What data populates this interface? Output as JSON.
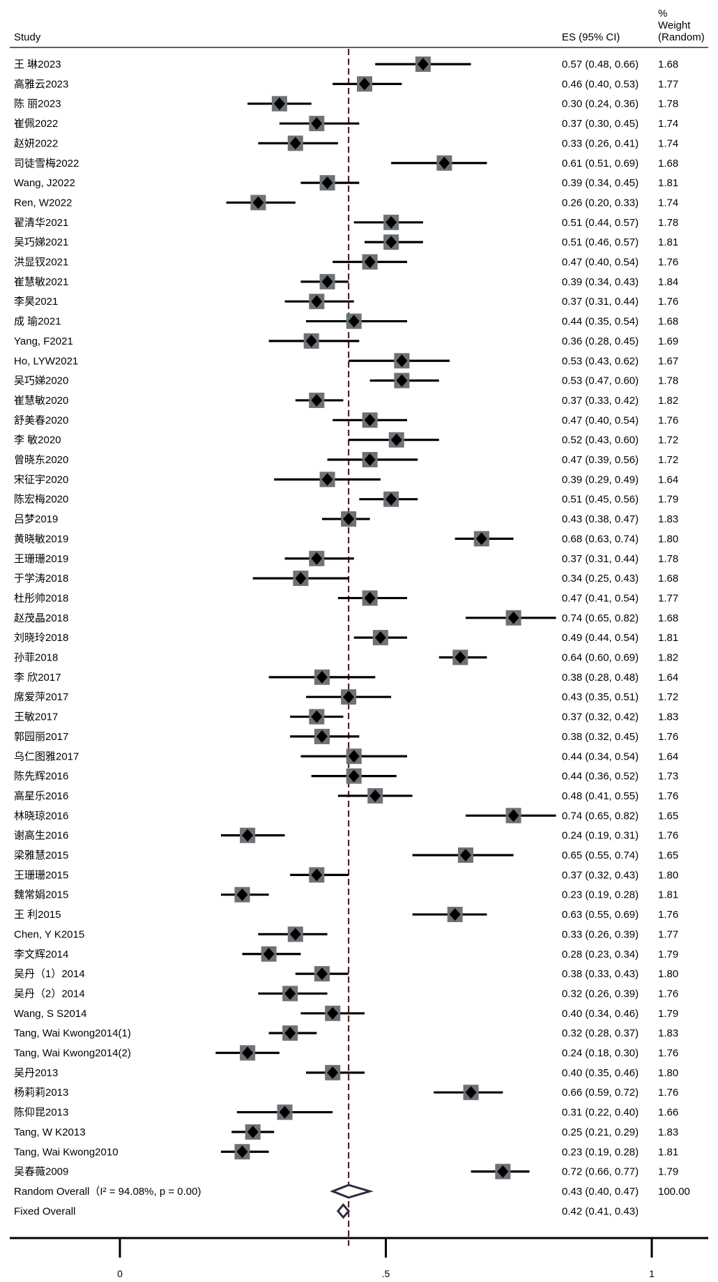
{
  "chart_data": {
    "type": "forest",
    "headers": {
      "study": "Study",
      "es": "ES (95% CI)",
      "weight_lines": [
        "%",
        "Weight",
        "(Random)"
      ]
    },
    "xlim": [
      0,
      1
    ],
    "x_ticks": [
      {
        "value": 0,
        "label": "0"
      },
      {
        "value": 0.5,
        "label": ".5"
      },
      {
        "value": 1,
        "label": "1"
      }
    ],
    "reference_line": 0.43,
    "studies": [
      {
        "label": "王 琳2023",
        "es": 0.57,
        "lo": 0.48,
        "hi": 0.66,
        "ci_text": "0.57 (0.48, 0.66)",
        "weight": "1.68"
      },
      {
        "label": "高雅云2023",
        "es": 0.46,
        "lo": 0.4,
        "hi": 0.53,
        "ci_text": "0.46 (0.40, 0.53)",
        "weight": "1.77"
      },
      {
        "label": "陈 丽2023",
        "es": 0.3,
        "lo": 0.24,
        "hi": 0.36,
        "ci_text": "0.30 (0.24, 0.36)",
        "weight": "1.78"
      },
      {
        "label": "崔佩2022",
        "es": 0.37,
        "lo": 0.3,
        "hi": 0.45,
        "ci_text": "0.37 (0.30, 0.45)",
        "weight": "1.74"
      },
      {
        "label": "赵妍2022",
        "es": 0.33,
        "lo": 0.26,
        "hi": 0.41,
        "ci_text": "0.33 (0.26, 0.41)",
        "weight": "1.74"
      },
      {
        "label": "司徒雪梅2022",
        "es": 0.61,
        "lo": 0.51,
        "hi": 0.69,
        "ci_text": "0.61 (0.51, 0.69)",
        "weight": "1.68"
      },
      {
        "label": "Wang, J2022",
        "es": 0.39,
        "lo": 0.34,
        "hi": 0.45,
        "ci_text": "0.39 (0.34, 0.45)",
        "weight": "1.81"
      },
      {
        "label": "Ren, W2022",
        "es": 0.26,
        "lo": 0.2,
        "hi": 0.33,
        "ci_text": "0.26 (0.20, 0.33)",
        "weight": "1.74"
      },
      {
        "label": "翟清华2021",
        "es": 0.51,
        "lo": 0.44,
        "hi": 0.57,
        "ci_text": "0.51 (0.44, 0.57)",
        "weight": "1.78"
      },
      {
        "label": "吴巧娣2021",
        "es": 0.51,
        "lo": 0.46,
        "hi": 0.57,
        "ci_text": "0.51 (0.46, 0.57)",
        "weight": "1.81"
      },
      {
        "label": "洪显钗2021",
        "es": 0.47,
        "lo": 0.4,
        "hi": 0.54,
        "ci_text": "0.47 (0.40, 0.54)",
        "weight": "1.76"
      },
      {
        "label": "崔慧敏2021",
        "es": 0.39,
        "lo": 0.34,
        "hi": 0.43,
        "ci_text": "0.39 (0.34, 0.43)",
        "weight": "1.84"
      },
      {
        "label": "李昊2021",
        "es": 0.37,
        "lo": 0.31,
        "hi": 0.44,
        "ci_text": "0.37 (0.31, 0.44)",
        "weight": "1.76"
      },
      {
        "label": "成 瑜2021",
        "es": 0.44,
        "lo": 0.35,
        "hi": 0.54,
        "ci_text": "0.44 (0.35, 0.54)",
        "weight": "1.68"
      },
      {
        "label": "Yang, F2021",
        "es": 0.36,
        "lo": 0.28,
        "hi": 0.45,
        "ci_text": "0.36 (0.28, 0.45)",
        "weight": "1.69"
      },
      {
        "label": "Ho, LYW2021",
        "es": 0.53,
        "lo": 0.43,
        "hi": 0.62,
        "ci_text": "0.53 (0.43, 0.62)",
        "weight": "1.67"
      },
      {
        "label": "吴巧娣2020",
        "es": 0.53,
        "lo": 0.47,
        "hi": 0.6,
        "ci_text": "0.53 (0.47, 0.60)",
        "weight": "1.78"
      },
      {
        "label": "崔慧敏2020",
        "es": 0.37,
        "lo": 0.33,
        "hi": 0.42,
        "ci_text": "0.37 (0.33, 0.42)",
        "weight": "1.82"
      },
      {
        "label": "舒美春2020",
        "es": 0.47,
        "lo": 0.4,
        "hi": 0.54,
        "ci_text": "0.47 (0.40, 0.54)",
        "weight": "1.76"
      },
      {
        "label": "李 敏2020",
        "es": 0.52,
        "lo": 0.43,
        "hi": 0.6,
        "ci_text": "0.52 (0.43, 0.60)",
        "weight": "1.72"
      },
      {
        "label": "曾晓东2020",
        "es": 0.47,
        "lo": 0.39,
        "hi": 0.56,
        "ci_text": "0.47 (0.39, 0.56)",
        "weight": "1.72"
      },
      {
        "label": "宋征宇2020",
        "es": 0.39,
        "lo": 0.29,
        "hi": 0.49,
        "ci_text": "0.39 (0.29, 0.49)",
        "weight": "1.64"
      },
      {
        "label": "陈宏梅2020",
        "es": 0.51,
        "lo": 0.45,
        "hi": 0.56,
        "ci_text": "0.51 (0.45, 0.56)",
        "weight": "1.79"
      },
      {
        "label": "吕梦2019",
        "es": 0.43,
        "lo": 0.38,
        "hi": 0.47,
        "ci_text": "0.43 (0.38, 0.47)",
        "weight": "1.83"
      },
      {
        "label": "黄晓敏2019",
        "es": 0.68,
        "lo": 0.63,
        "hi": 0.74,
        "ci_text": "0.68 (0.63, 0.74)",
        "weight": "1.80"
      },
      {
        "label": "王珊珊2019",
        "es": 0.37,
        "lo": 0.31,
        "hi": 0.44,
        "ci_text": "0.37 (0.31, 0.44)",
        "weight": "1.78"
      },
      {
        "label": "于学涛2018",
        "es": 0.34,
        "lo": 0.25,
        "hi": 0.43,
        "ci_text": "0.34 (0.25, 0.43)",
        "weight": "1.68"
      },
      {
        "label": "杜彤帅2018",
        "es": 0.47,
        "lo": 0.41,
        "hi": 0.54,
        "ci_text": "0.47 (0.41, 0.54)",
        "weight": "1.77"
      },
      {
        "label": "赵茂晶2018",
        "es": 0.74,
        "lo": 0.65,
        "hi": 0.82,
        "ci_text": "0.74 (0.65, 0.82)",
        "weight": "1.68"
      },
      {
        "label": "刘晓玲2018",
        "es": 0.49,
        "lo": 0.44,
        "hi": 0.54,
        "ci_text": "0.49 (0.44, 0.54)",
        "weight": "1.81"
      },
      {
        "label": "孙菲2018",
        "es": 0.64,
        "lo": 0.6,
        "hi": 0.69,
        "ci_text": "0.64 (0.60, 0.69)",
        "weight": "1.82"
      },
      {
        "label": "李 欣2017",
        "es": 0.38,
        "lo": 0.28,
        "hi": 0.48,
        "ci_text": "0.38 (0.28, 0.48)",
        "weight": "1.64"
      },
      {
        "label": "席爱萍2017",
        "es": 0.43,
        "lo": 0.35,
        "hi": 0.51,
        "ci_text": "0.43 (0.35, 0.51)",
        "weight": "1.72"
      },
      {
        "label": "王敏2017",
        "es": 0.37,
        "lo": 0.32,
        "hi": 0.42,
        "ci_text": "0.37 (0.32, 0.42)",
        "weight": "1.83"
      },
      {
        "label": "郭园丽2017",
        "es": 0.38,
        "lo": 0.32,
        "hi": 0.45,
        "ci_text": "0.38 (0.32, 0.45)",
        "weight": "1.76"
      },
      {
        "label": "乌仁图雅2017",
        "es": 0.44,
        "lo": 0.34,
        "hi": 0.54,
        "ci_text": "0.44 (0.34, 0.54)",
        "weight": "1.64"
      },
      {
        "label": "陈先辉2016",
        "es": 0.44,
        "lo": 0.36,
        "hi": 0.52,
        "ci_text": "0.44 (0.36, 0.52)",
        "weight": "1.73"
      },
      {
        "label": "高星乐2016",
        "es": 0.48,
        "lo": 0.41,
        "hi": 0.55,
        "ci_text": "0.48 (0.41, 0.55)",
        "weight": "1.76"
      },
      {
        "label": "林晓琼2016",
        "es": 0.74,
        "lo": 0.65,
        "hi": 0.82,
        "ci_text": "0.74 (0.65, 0.82)",
        "weight": "1.65"
      },
      {
        "label": "谢高生2016",
        "es": 0.24,
        "lo": 0.19,
        "hi": 0.31,
        "ci_text": "0.24 (0.19, 0.31)",
        "weight": "1.76"
      },
      {
        "label": "梁雅慧2015",
        "es": 0.65,
        "lo": 0.55,
        "hi": 0.74,
        "ci_text": "0.65 (0.55, 0.74)",
        "weight": "1.65"
      },
      {
        "label": "王珊珊2015",
        "es": 0.37,
        "lo": 0.32,
        "hi": 0.43,
        "ci_text": "0.37 (0.32, 0.43)",
        "weight": "1.80"
      },
      {
        "label": "魏常娟2015",
        "es": 0.23,
        "lo": 0.19,
        "hi": 0.28,
        "ci_text": "0.23 (0.19, 0.28)",
        "weight": "1.81"
      },
      {
        "label": "王 利2015",
        "es": 0.63,
        "lo": 0.55,
        "hi": 0.69,
        "ci_text": "0.63 (0.55, 0.69)",
        "weight": "1.76"
      },
      {
        "label": "Chen, Y K2015",
        "es": 0.33,
        "lo": 0.26,
        "hi": 0.39,
        "ci_text": "0.33 (0.26, 0.39)",
        "weight": "1.77"
      },
      {
        "label": "李文辉2014",
        "es": 0.28,
        "lo": 0.23,
        "hi": 0.34,
        "ci_text": "0.28 (0.23, 0.34)",
        "weight": "1.79"
      },
      {
        "label": "吴丹（1）2014",
        "es": 0.38,
        "lo": 0.33,
        "hi": 0.43,
        "ci_text": "0.38 (0.33, 0.43)",
        "weight": "1.80"
      },
      {
        "label": "吴丹（2）2014",
        "es": 0.32,
        "lo": 0.26,
        "hi": 0.39,
        "ci_text": "0.32 (0.26, 0.39)",
        "weight": "1.76"
      },
      {
        "label": "Wang, S S2014",
        "es": 0.4,
        "lo": 0.34,
        "hi": 0.46,
        "ci_text": "0.40 (0.34, 0.46)",
        "weight": "1.79"
      },
      {
        "label": "Tang, Wai Kwong2014(1)",
        "es": 0.32,
        "lo": 0.28,
        "hi": 0.37,
        "ci_text": "0.32 (0.28, 0.37)",
        "weight": "1.83"
      },
      {
        "label": "Tang, Wai Kwong2014(2)",
        "es": 0.24,
        "lo": 0.18,
        "hi": 0.3,
        "ci_text": "0.24 (0.18, 0.30)",
        "weight": "1.76"
      },
      {
        "label": "吴丹2013",
        "es": 0.4,
        "lo": 0.35,
        "hi": 0.46,
        "ci_text": "0.40 (0.35, 0.46)",
        "weight": "1.80"
      },
      {
        "label": "杨莉莉2013",
        "es": 0.66,
        "lo": 0.59,
        "hi": 0.72,
        "ci_text": "0.66 (0.59, 0.72)",
        "weight": "1.76"
      },
      {
        "label": "陈仰昆2013",
        "es": 0.31,
        "lo": 0.22,
        "hi": 0.4,
        "ci_text": "0.31 (0.22, 0.40)",
        "weight": "1.66"
      },
      {
        "label": "Tang, W K2013",
        "es": 0.25,
        "lo": 0.21,
        "hi": 0.29,
        "ci_text": "0.25 (0.21, 0.29)",
        "weight": "1.83"
      },
      {
        "label": "Tang, Wai Kwong2010",
        "es": 0.23,
        "lo": 0.19,
        "hi": 0.28,
        "ci_text": "0.23 (0.19, 0.28)",
        "weight": "1.81"
      },
      {
        "label": "吴春薇2009",
        "es": 0.72,
        "lo": 0.66,
        "hi": 0.77,
        "ci_text": "0.72 (0.66, 0.77)",
        "weight": "1.79"
      }
    ],
    "overall": [
      {
        "label": "Random Overall（I² = 94.08%, p = 0.00)",
        "es": 0.43,
        "lo": 0.4,
        "hi": 0.47,
        "ci_text": "0.43 (0.40, 0.47)",
        "weight": "100.00"
      },
      {
        "label": "Fixed Overall",
        "es": 0.42,
        "lo": 0.41,
        "hi": 0.43,
        "ci_text": "0.42 (0.41, 0.43)",
        "weight": ""
      }
    ],
    "colors": {
      "marker_box": "#6e7175",
      "diamond": "#000000",
      "ci_line": "#000000",
      "overall_diamond": "#2b2d42",
      "reference_line": "#5a1f25"
    }
  }
}
